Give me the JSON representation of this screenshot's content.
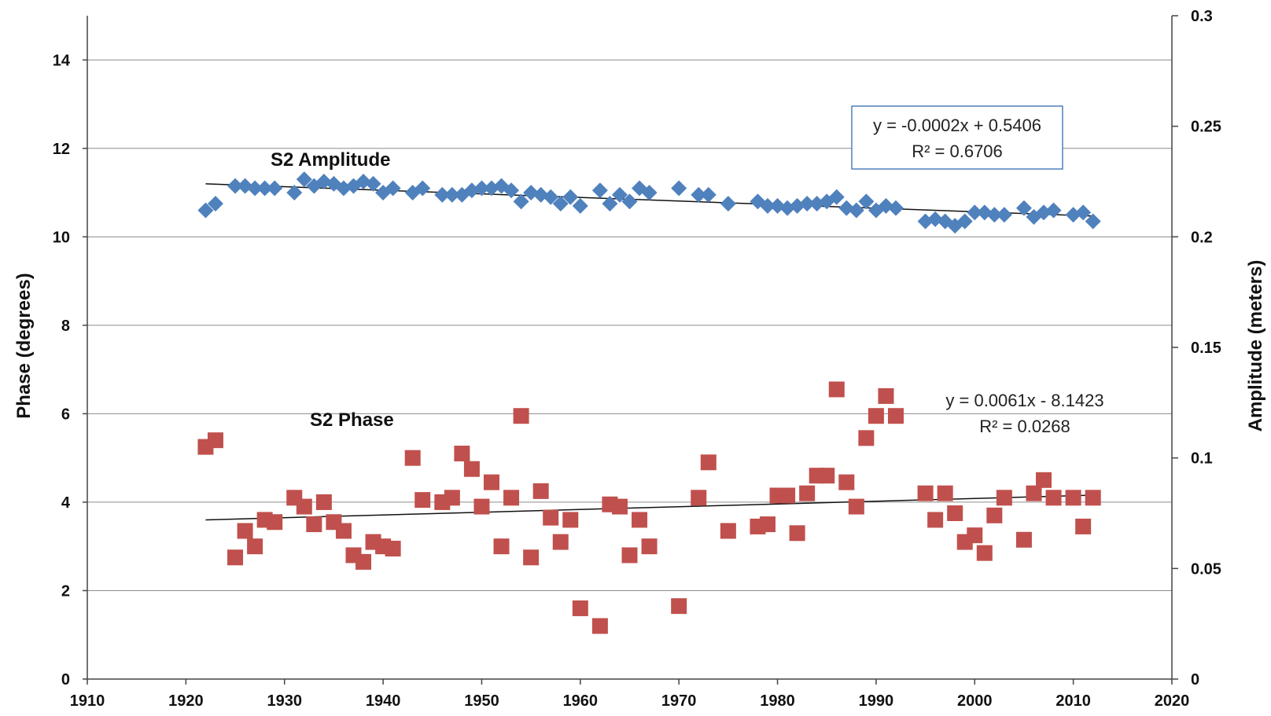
{
  "chart_data": {
    "type": "scatter",
    "title": "",
    "x_axis": {
      "min": 1910,
      "max": 2020,
      "ticks": [
        1910,
        1920,
        1930,
        1940,
        1950,
        1960,
        1970,
        1980,
        1990,
        2000,
        2010,
        2020
      ],
      "label": ""
    },
    "y_left": {
      "label": "Phase (degrees)",
      "min": 0,
      "max": 15,
      "ticks": [
        0,
        2,
        4,
        6,
        8,
        10,
        12,
        14
      ]
    },
    "y_right": {
      "label": "Amplitude (meters)",
      "min": 0,
      "max": 0.3,
      "ticks": [
        "0",
        "0.05",
        "0.1",
        "0.15",
        "0.2",
        "0.25",
        "0.3"
      ]
    },
    "grid": true,
    "series": [
      {
        "name": "S2 Amplitude",
        "axis": "right",
        "marker": "diamond",
        "color": "#4f81bd",
        "points": [
          [
            1922,
            0.212
          ],
          [
            1923,
            0.215
          ],
          [
            1925,
            0.223
          ],
          [
            1926,
            0.223
          ],
          [
            1927,
            0.222
          ],
          [
            1928,
            0.222
          ],
          [
            1929,
            0.222
          ],
          [
            1931,
            0.22
          ],
          [
            1932,
            0.226
          ],
          [
            1933,
            0.223
          ],
          [
            1934,
            0.225
          ],
          [
            1935,
            0.224
          ],
          [
            1936,
            0.222
          ],
          [
            1937,
            0.223
          ],
          [
            1938,
            0.225
          ],
          [
            1939,
            0.224
          ],
          [
            1940,
            0.22
          ],
          [
            1941,
            0.222
          ],
          [
            1943,
            0.22
          ],
          [
            1944,
            0.222
          ],
          [
            1946,
            0.219
          ],
          [
            1947,
            0.219
          ],
          [
            1948,
            0.219
          ],
          [
            1949,
            0.221
          ],
          [
            1950,
            0.222
          ],
          [
            1951,
            0.222
          ],
          [
            1952,
            0.223
          ],
          [
            1953,
            0.221
          ],
          [
            1954,
            0.216
          ],
          [
            1955,
            0.22
          ],
          [
            1956,
            0.219
          ],
          [
            1957,
            0.218
          ],
          [
            1958,
            0.215
          ],
          [
            1959,
            0.218
          ],
          [
            1960,
            0.214
          ],
          [
            1962,
            0.221
          ],
          [
            1963,
            0.215
          ],
          [
            1964,
            0.219
          ],
          [
            1965,
            0.216
          ],
          [
            1966,
            0.222
          ],
          [
            1967,
            0.22
          ],
          [
            1970,
            0.222
          ],
          [
            1972,
            0.219
          ],
          [
            1973,
            0.219
          ],
          [
            1975,
            0.215
          ],
          [
            1978,
            0.216
          ],
          [
            1979,
            0.214
          ],
          [
            1980,
            0.214
          ],
          [
            1981,
            0.213
          ],
          [
            1982,
            0.214
          ],
          [
            1983,
            0.215
          ],
          [
            1984,
            0.215
          ],
          [
            1985,
            0.216
          ],
          [
            1986,
            0.218
          ],
          [
            1987,
            0.213
          ],
          [
            1988,
            0.212
          ],
          [
            1989,
            0.216
          ],
          [
            1990,
            0.212
          ],
          [
            1991,
            0.214
          ],
          [
            1992,
            0.213
          ],
          [
            1995,
            0.207
          ],
          [
            1996,
            0.208
          ],
          [
            1997,
            0.207
          ],
          [
            1998,
            0.205
          ],
          [
            1999,
            0.207
          ],
          [
            2000,
            0.211
          ],
          [
            2001,
            0.211
          ],
          [
            2002,
            0.21
          ],
          [
            2003,
            0.21
          ],
          [
            2005,
            0.213
          ],
          [
            2006,
            0.209
          ],
          [
            2007,
            0.211
          ],
          [
            2008,
            0.212
          ],
          [
            2010,
            0.21
          ],
          [
            2011,
            0.211
          ],
          [
            2012,
            0.207
          ]
        ]
      },
      {
        "name": "S2 Phase",
        "axis": "left",
        "marker": "square",
        "color": "#c0504d",
        "points": [
          [
            1922,
            5.25
          ],
          [
            1923,
            5.4
          ],
          [
            1925,
            2.75
          ],
          [
            1926,
            3.35
          ],
          [
            1927,
            3.0
          ],
          [
            1928,
            3.6
          ],
          [
            1929,
            3.55
          ],
          [
            1931,
            4.1
          ],
          [
            1932,
            3.9
          ],
          [
            1933,
            3.5
          ],
          [
            1934,
            4.0
          ],
          [
            1935,
            3.55
          ],
          [
            1936,
            3.35
          ],
          [
            1937,
            2.8
          ],
          [
            1938,
            2.65
          ],
          [
            1939,
            3.1
          ],
          [
            1940,
            3.0
          ],
          [
            1941,
            2.95
          ],
          [
            1943,
            5.0
          ],
          [
            1944,
            4.05
          ],
          [
            1946,
            4.0
          ],
          [
            1947,
            4.1
          ],
          [
            1948,
            5.1
          ],
          [
            1949,
            4.75
          ],
          [
            1950,
            3.9
          ],
          [
            1951,
            4.45
          ],
          [
            1952,
            3.0
          ],
          [
            1953,
            4.1
          ],
          [
            1954,
            5.95
          ],
          [
            1955,
            2.75
          ],
          [
            1956,
            4.25
          ],
          [
            1957,
            3.65
          ],
          [
            1958,
            3.1
          ],
          [
            1959,
            3.6
          ],
          [
            1960,
            1.6
          ],
          [
            1962,
            1.2
          ],
          [
            1963,
            3.95
          ],
          [
            1964,
            3.9
          ],
          [
            1965,
            2.8
          ],
          [
            1966,
            3.6
          ],
          [
            1967,
            3.0
          ],
          [
            1970,
            1.65
          ],
          [
            1972,
            4.1
          ],
          [
            1973,
            4.9
          ],
          [
            1975,
            3.35
          ],
          [
            1978,
            3.45
          ],
          [
            1979,
            3.5
          ],
          [
            1980,
            4.15
          ],
          [
            1981,
            4.15
          ],
          [
            1982,
            3.3
          ],
          [
            1983,
            4.2
          ],
          [
            1984,
            4.6
          ],
          [
            1985,
            4.6
          ],
          [
            1986,
            6.55
          ],
          [
            1987,
            4.45
          ],
          [
            1988,
            3.9
          ],
          [
            1989,
            5.45
          ],
          [
            1990,
            5.95
          ],
          [
            1991,
            6.4
          ],
          [
            1992,
            5.95
          ],
          [
            1995,
            4.2
          ],
          [
            1996,
            3.6
          ],
          [
            1997,
            4.2
          ],
          [
            1998,
            3.75
          ],
          [
            1999,
            3.1
          ],
          [
            2000,
            3.25
          ],
          [
            2001,
            2.85
          ],
          [
            2002,
            3.7
          ],
          [
            2003,
            4.1
          ],
          [
            2005,
            3.15
          ],
          [
            2006,
            4.2
          ],
          [
            2007,
            4.5
          ],
          [
            2008,
            4.1
          ],
          [
            2010,
            4.1
          ],
          [
            2011,
            3.45
          ],
          [
            2012,
            4.1
          ]
        ]
      }
    ],
    "trendlines": [
      {
        "series": "S2 Amplitude",
        "axis": "right",
        "x_range": [
          1922,
          2012
        ],
        "slope": -0.0002,
        "intercept": 0.5406,
        "equation": "y = -0.0002x + 0.5406",
        "r2": "R² = 0.6706",
        "boxed": true
      },
      {
        "series": "S2 Phase",
        "axis": "left",
        "x_range": [
          1922,
          2012
        ],
        "slope": 0.0061,
        "intercept": -8.1423,
        "equation": "y = 0.0061x - 8.1423",
        "r2": "R² = 0.0268",
        "boxed": false
      }
    ]
  }
}
